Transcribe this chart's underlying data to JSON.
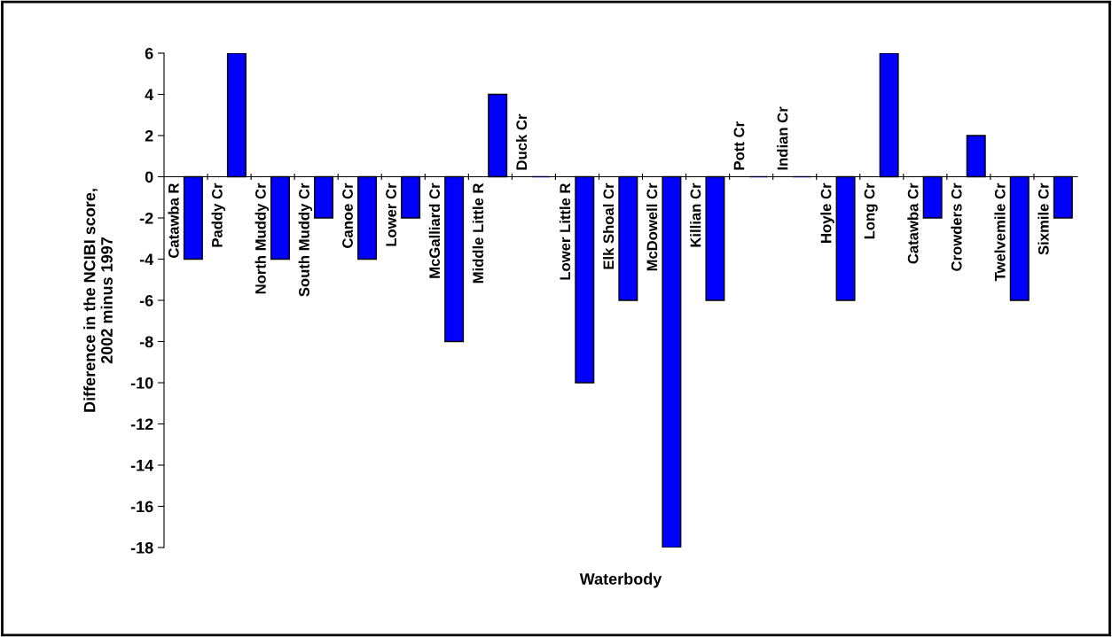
{
  "chart_data": {
    "type": "bar",
    "xlabel": "Waterbody",
    "ylabel": "Difference in the NCIBI score,\n2002 minus 1997",
    "categories": [
      "Catawba R",
      "Paddy Cr",
      "North Muddy Cr",
      "South Muddy Cr",
      "Canoe Cr",
      "Lower Cr",
      "McGalliard Cr",
      "Middle Little R",
      "Duck Cr",
      "Lower Little R",
      "Elk Shoal Cr",
      "McDowell Cr",
      "Killian Cr",
      "Pott Cr",
      "Indian Cr",
      "Hoyle Cr",
      "Long Cr",
      "Catawba Cr",
      "Crowders Cr",
      "Twelvemile Cr",
      "Sixmile Cr"
    ],
    "values": [
      -4,
      6,
      -4,
      -2,
      -4,
      -2,
      -8,
      4,
      0,
      -10,
      -6,
      -18,
      -6,
      0,
      0,
      -6,
      6,
      -2,
      2,
      -6,
      -2
    ],
    "color": "#0000ff",
    "ylim": [
      -18,
      6
    ],
    "yticks": [
      -18,
      -16,
      -14,
      -12,
      -10,
      -8,
      -6,
      -4,
      -2,
      0,
      2,
      4,
      6
    ],
    "grid": false,
    "legend": false
  }
}
